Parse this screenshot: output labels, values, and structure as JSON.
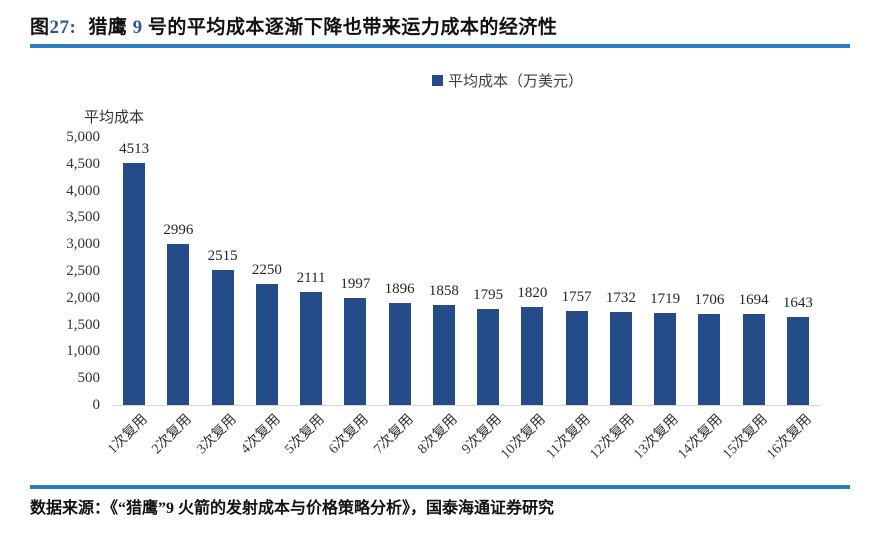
{
  "header": {
    "prefix": "图",
    "number": "27:",
    "title_part1": "猎鹰 ",
    "title_number": "9",
    "title_part2": " 号的平均成本逐渐下降也带来运力成本的经济性"
  },
  "legend": {
    "label": "平均成本（万美元）"
  },
  "footer": {
    "source": "数据来源：《“猎鹰”9 火箭的发射成本与价格策略分析》，国泰海通证券研究"
  },
  "colors": {
    "bar": "#234C88",
    "accent_rule": "#2B7FC0",
    "title_number_blue": "#2F5496",
    "axis_line": "#D6D6D6"
  },
  "chart_data": {
    "type": "bar",
    "title": "猎鹰9号的平均成本逐渐下降也带来运力成本的经济性",
    "legend": [
      "平均成本（万美元）"
    ],
    "legend_position": "top",
    "categories": [
      "1次复用",
      "2次复用",
      "3次复用",
      "4次复用",
      "5次复用",
      "6次复用",
      "7次复用",
      "8次复用",
      "9次复用",
      "10次复用",
      "11次复用",
      "12次复用",
      "13次复用",
      "14次复用",
      "15次复用",
      "16次复用"
    ],
    "values": [
      4513,
      2996,
      2515,
      2250,
      2111,
      1997,
      1896,
      1858,
      1795,
      1820,
      1757,
      1732,
      1719,
      1706,
      1694,
      1643
    ],
    "xlabel": "",
    "ylabel": "平均成本",
    "ylim": [
      0,
      5000
    ],
    "ytick_step": 500,
    "grid": false,
    "bar_color": "#234C88"
  }
}
